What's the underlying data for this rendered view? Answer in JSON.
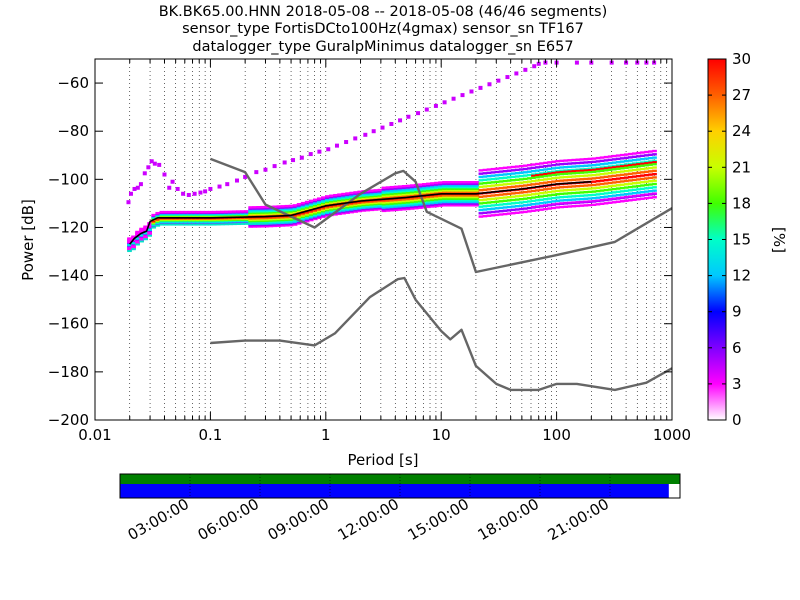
{
  "chart_data": {
    "type": "heatmap",
    "title_lines": [
      "BK.BK65.00.HNN   2018-05-08 -- 2018-05-08  (46/46 segments)",
      "sensor_type FortisDCto100Hz(4gmax) sensor_sn TF167",
      "datalogger_type GuralpMinimus datalogger_sn E657"
    ],
    "xlabel": "Period [s]",
    "ylabel": "Power [dB]",
    "xscale": "log",
    "xlim": [
      0.01,
      1000
    ],
    "ylim": [
      -200,
      -50
    ],
    "xticks": [
      0.01,
      0.1,
      1,
      10,
      100,
      1000
    ],
    "xtick_labels": [
      "0.01",
      "0.1",
      "1",
      "10",
      "100",
      "1000"
    ],
    "yticks": [
      -200,
      -180,
      -160,
      -140,
      -120,
      -100,
      -80,
      -60
    ],
    "ytick_labels": [
      "−200",
      "−180",
      "−160",
      "−140",
      "−120",
      "−100",
      "−80",
      "−60"
    ],
    "grid": "vertical dotted at minor log ticks",
    "colorbar": {
      "label": "[%]",
      "range": [
        0,
        30
      ],
      "ticks": [
        0,
        3,
        6,
        9,
        12,
        15,
        18,
        21,
        24,
        27,
        30
      ],
      "tick_labels": [
        "0",
        "3",
        "6",
        "9",
        "12",
        "15",
        "18",
        "21",
        "24",
        "27",
        "30"
      ],
      "colormap": "pqlx"
    },
    "series": [
      {
        "color": "#666666",
        "x": [
          0.1,
          0.2,
          0.3,
          0.8,
          2,
          4,
          4.7,
          6,
          7.5,
          15,
          20,
          100,
          320,
          1000
        ],
        "y": [
          -91.5,
          -97,
          -110.5,
          -120,
          -106,
          -97.5,
          -96.5,
          -101,
          -113.5,
          -120.5,
          -138.5,
          -131.5,
          -126,
          -112
        ]
      },
      {
        "color": "#666666",
        "x": [
          0.1,
          0.2,
          0.4,
          0.8,
          1.2,
          2.4,
          4.2,
          4.8,
          6,
          10,
          12,
          15,
          20,
          30,
          40,
          70,
          100,
          150,
          320,
          600,
          1000
        ],
        "y": [
          -168,
          -167,
          -167,
          -169,
          -164,
          -149,
          -141.5,
          -141,
          -150,
          -163,
          -166.5,
          -162.5,
          -177.5,
          -185,
          -187.5,
          -187.5,
          -185,
          -185,
          -187.5,
          -184.5,
          -178.5
        ]
      },
      {
        "color": "#000000",
        "x": [
          0.02,
          0.022,
          0.025,
          0.028,
          0.03,
          0.035,
          0.04,
          0.05,
          0.1,
          0.3,
          0.5,
          1,
          2,
          5,
          10,
          20,
          50,
          100,
          200
        ],
        "y": [
          -127,
          -124.5,
          -122.5,
          -121.5,
          -117.5,
          -116,
          -116,
          -116,
          -116,
          -115.5,
          -115,
          -111,
          -109,
          -107.5,
          -106,
          -106,
          -104,
          -102,
          -101
        ]
      }
    ],
    "density_magenta": {
      "x": [
        0.0195,
        0.0205,
        0.022,
        0.0235,
        0.025,
        0.027,
        0.029,
        0.031,
        0.033,
        0.036,
        0.04,
        0.044,
        0.047,
        0.052,
        0.058,
        0.065,
        0.073,
        0.082,
        0.09,
        0.1,
        0.12,
        0.14,
        0.17,
        0.2,
        0.25,
        0.3,
        0.36,
        0.44,
        0.52,
        0.62,
        0.74,
        0.88,
        1.05,
        1.25,
        1.5,
        1.8,
        2.2,
        2.6,
        3.1,
        3.7,
        4.4,
        5.2,
        6.3,
        7.5,
        9,
        10.7,
        12.8,
        15.3,
        18.3,
        21.9,
        26.2,
        31.3,
        37.5,
        44.8,
        53.6,
        64,
        70,
        80,
        100,
        150,
        200,
        300,
        400,
        500,
        600,
        700
      ],
      "y": [
        -109.5,
        -106,
        -104,
        -103.5,
        -102,
        -97.5,
        -95,
        -92.5,
        -93.5,
        -94,
        -98,
        -103.5,
        -101,
        -104,
        -106,
        -106.5,
        -106,
        -105.5,
        -105,
        -104,
        -103,
        -102,
        -100.5,
        -99,
        -97,
        -96,
        -94.5,
        -93,
        -92,
        -91,
        -89.5,
        -88.5,
        -87.5,
        -86,
        -84.5,
        -83,
        -81.5,
        -80,
        -78.5,
        -77,
        -75.5,
        -74,
        -72.5,
        -71,
        -69.5,
        -68,
        -66.5,
        -65,
        -63.5,
        -62,
        -60.5,
        -59,
        -57.5,
        -56,
        -54.5,
        -53,
        -52,
        -51.5,
        -51.5,
        -51.5,
        -51.5,
        -51.5,
        -51.5,
        -51.5,
        -51.5,
        -51.5
      ]
    }
  },
  "timeline": {
    "ticks": [
      "03:00:00",
      "06:00:00",
      "09:00:00",
      "12:00:00",
      "15:00:00",
      "18:00:00",
      "21:00:00"
    ],
    "data_coverage": 1.0,
    "psd_coverage": 0.98,
    "data_color": "#008000",
    "psd_color": "#0000ff"
  }
}
